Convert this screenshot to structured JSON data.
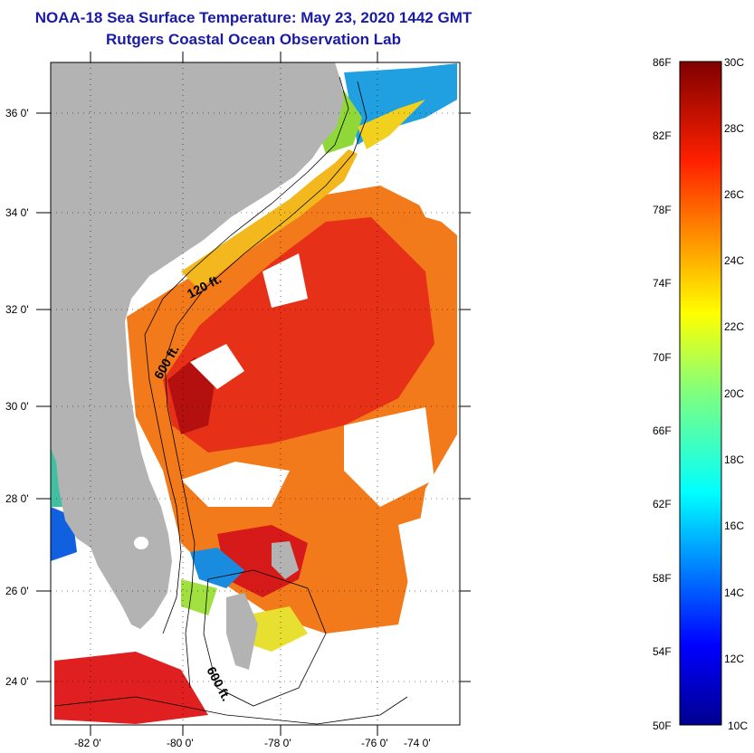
{
  "title": {
    "line1": "NOAA-18 Sea Surface Temperature:  May 23, 2020 1442 GMT",
    "line2": "Rutgers Coastal Ocean Observation Lab"
  },
  "map": {
    "lat_labels": [
      "36 0'",
      "34 0'",
      "32 0'",
      "30 0'",
      "28 0'",
      "26 0'",
      "24 0'"
    ],
    "lon_labels": [
      "-82 0'",
      "-80 0'",
      "-78 0'",
      "-76 0'",
      "-74 0'"
    ],
    "contour_labels": [
      "120 ft.",
      "600 ft.",
      "600 ft."
    ],
    "colors": {
      "land": "#b3b3b3",
      "cloud": "#ffffff",
      "warm": "#e61e1e",
      "orange": "#f27a1a",
      "yellow": "#f2c81e",
      "cool": "#20a0e0"
    }
  },
  "colorbar": {
    "fahrenheit_labels": [
      "86F",
      "82F",
      "78F",
      "74F",
      "70F",
      "66F",
      "62F",
      "58F",
      "54F",
      "50F"
    ],
    "celsius_labels": [
      "30C",
      "28C",
      "26C",
      "24C",
      "22C",
      "20C",
      "18C",
      "16C",
      "14C",
      "12C",
      "10C"
    ],
    "fahrenheit_range": [
      50,
      86
    ],
    "celsius_range": [
      10,
      30
    ],
    "colormap": "jet"
  }
}
